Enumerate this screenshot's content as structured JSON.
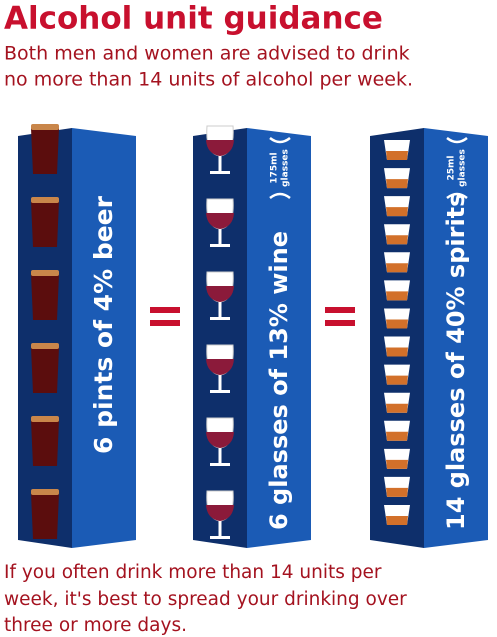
{
  "header": {
    "title": "Alcohol unit guidance",
    "intro": [
      "Both men and women are advised to drink",
      "no  more than 14 units of alcohol per week."
    ]
  },
  "columns": [
    {
      "label": "6 pints of 4% beer",
      "icon": "pint",
      "icons": 6
    },
    {
      "label": "6 glasses of 13% wine",
      "note": [
        "175ml",
        "glasses"
      ],
      "icon": "wine",
      "icons": 6
    },
    {
      "label": "14 glasses of 40% spirits",
      "note": [
        "25ml",
        "glasses"
      ],
      "icon": "shot",
      "icons": 14
    }
  ],
  "footer": [
    "If you often drink more than 14 units per",
    "week, it's best to spread your drinking over",
    "three or more days."
  ]
}
